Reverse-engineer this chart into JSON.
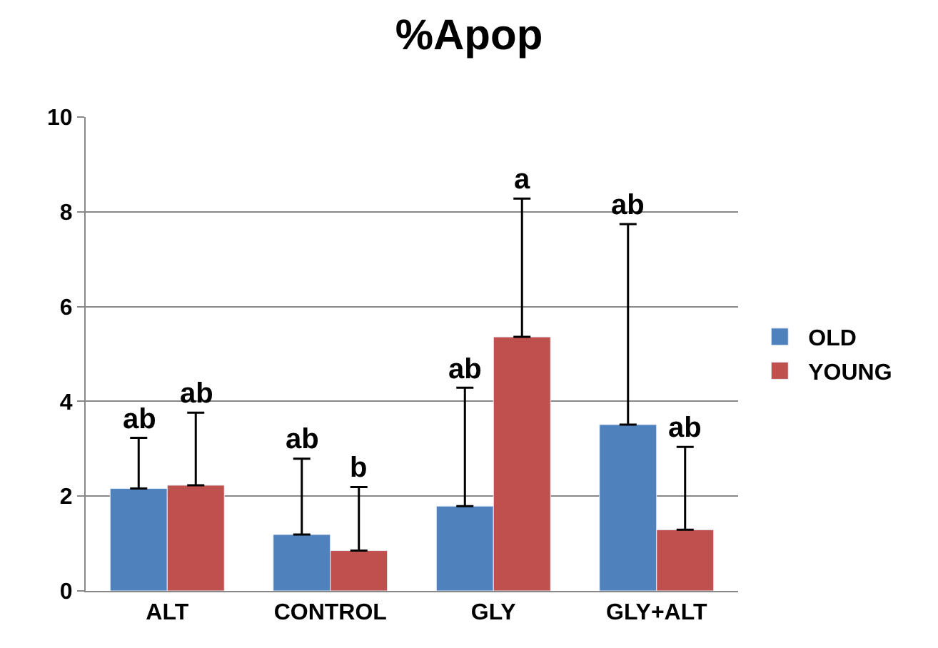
{
  "chart_data": {
    "type": "bar",
    "title": "%Apop",
    "categories": [
      "ALT",
      "CONTROL",
      "GLY",
      "GLY+ALT"
    ],
    "series": [
      {
        "name": "OLD",
        "color": "#4f81bd",
        "values": [
          2.16,
          1.19,
          1.79,
          3.51
        ],
        "errors": [
          [
            2.16,
            3.23
          ],
          [
            1.19,
            2.79
          ],
          [
            1.79,
            4.29
          ],
          [
            3.51,
            7.74
          ]
        ]
      },
      {
        "name": "YOUNG",
        "color": "#c0504d",
        "values": [
          2.23,
          0.85,
          5.36,
          1.29
        ],
        "errors": [
          [
            2.23,
            3.76
          ],
          [
            0.85,
            2.19
          ],
          [
            5.36,
            8.28
          ],
          [
            1.29,
            3.04
          ]
        ]
      }
    ],
    "ylim": [
      0,
      10
    ],
    "yticks": [
      0,
      2,
      4,
      6,
      8,
      10
    ],
    "grid": "y",
    "legend": "right",
    "annotations": [
      "ab",
      "ab",
      "ab",
      "b",
      "ab",
      "a",
      "ab",
      "ab"
    ]
  }
}
